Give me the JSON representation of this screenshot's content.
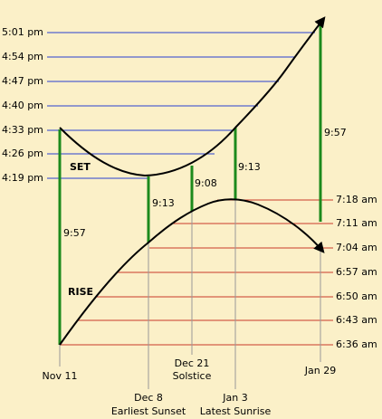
{
  "sunset_times": [
    "5:01 pm",
    "4:54 pm",
    "4:47 pm",
    "4:40 pm",
    "4:33 pm",
    "4:26 pm",
    "4:19 pm"
  ],
  "sunrise_times": [
    "7:18 am",
    "7:11 am",
    "7:04 am",
    "6:57 am",
    "6:50 am",
    "6:43 am",
    "6:36 am"
  ],
  "curve_labels": [
    "SET",
    "RISE"
  ],
  "durations": [
    "9:57",
    "9:13",
    "9:08",
    "9:13",
    "9:57"
  ],
  "dates": [
    {
      "date": "Nov 11"
    },
    {
      "date": "Dec 8",
      "note": "Earliest Sunset"
    },
    {
      "date": "Dec 21",
      "note": "Solstice"
    },
    {
      "date": "Jan 3",
      "note": "Latest Sunrise"
    },
    {
      "date": "Jan 29"
    }
  ]
}
